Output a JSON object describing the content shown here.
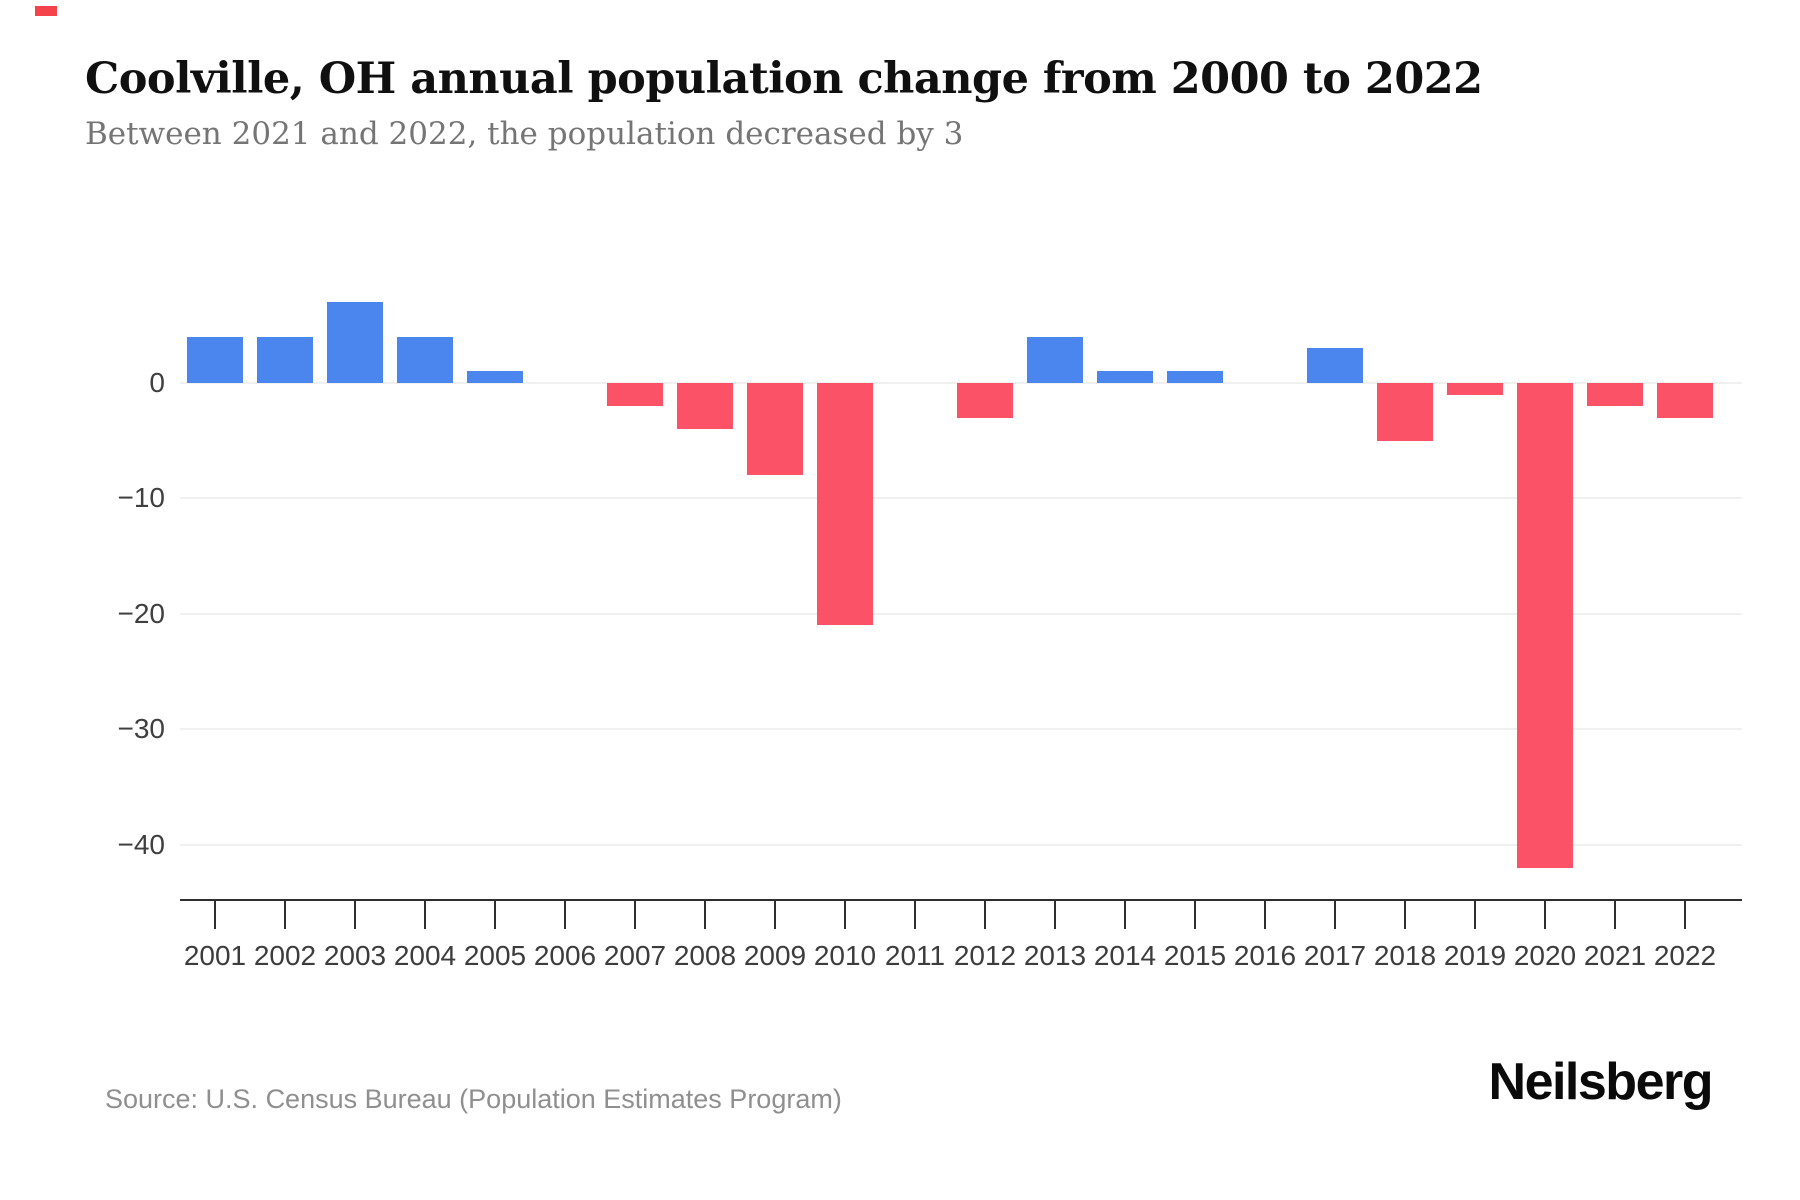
{
  "header": {
    "title": "Coolville, OH annual population change from 2000 to 2022",
    "subtitle": "Between 2021 and 2022, the population decreased by 3"
  },
  "footer": {
    "source": "Source: U.S. Census Bureau (Population Estimates Program)",
    "brand": "Neilsberg"
  },
  "chart_data": {
    "type": "bar",
    "title": "Coolville, OH annual population change from 2000 to 2022",
    "xlabel": "",
    "ylabel": "",
    "categories": [
      "2001",
      "2002",
      "2003",
      "2004",
      "2005",
      "2006",
      "2007",
      "2008",
      "2009",
      "2010",
      "2011",
      "2012",
      "2013",
      "2014",
      "2015",
      "2016",
      "2017",
      "2018",
      "2019",
      "2020",
      "2021",
      "2022"
    ],
    "values": [
      4,
      4,
      7,
      4,
      1,
      0,
      -2,
      -4,
      -8,
      -21,
      0,
      -3,
      4,
      1,
      1,
      0,
      3,
      -5,
      -1,
      -42,
      -2,
      -3
    ],
    "y_ticks": [
      {
        "label": "0",
        "value": 0
      },
      {
        "label": "−10",
        "value": -10
      },
      {
        "label": "−20",
        "value": -20
      },
      {
        "label": "−30",
        "value": -30
      },
      {
        "label": "−40",
        "value": -40
      }
    ],
    "ylim": [
      -44,
      8
    ],
    "grid": true,
    "legend": false,
    "colors": {
      "positive": "#4a86ee",
      "negative": "#fb5268",
      "gridline": "#f0f0f0",
      "axis": "#2f2f2f"
    }
  }
}
